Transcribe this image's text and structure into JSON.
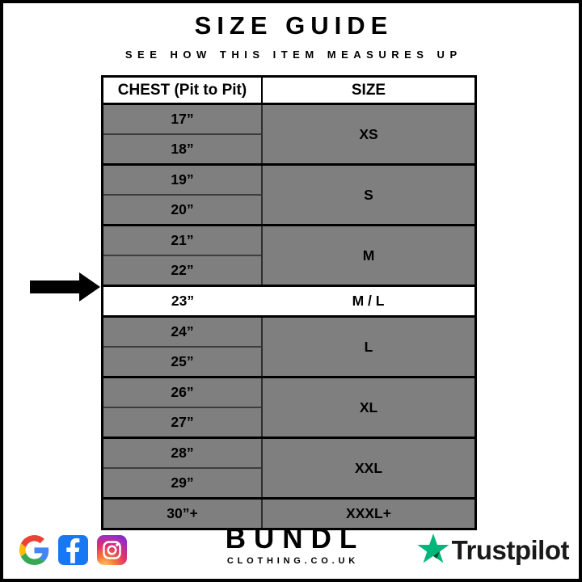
{
  "header": {
    "title": "SIZE GUIDE",
    "subtitle": "SEE HOW THIS ITEM MEASURES UP"
  },
  "chart_data": {
    "type": "table",
    "title": "SIZE GUIDE",
    "columns": [
      "CHEST (Pit to Pit)",
      "SIZE"
    ],
    "groups": [
      {
        "chest": [
          "17”",
          "18”"
        ],
        "size": "XS",
        "highlighted": false
      },
      {
        "chest": [
          "19”",
          "20”"
        ],
        "size": "S",
        "highlighted": false
      },
      {
        "chest": [
          "21”",
          "22”"
        ],
        "size": "M",
        "highlighted": false
      },
      {
        "chest": [
          "23”"
        ],
        "size": "M / L",
        "highlighted": true
      },
      {
        "chest": [
          "24”",
          "25”"
        ],
        "size": "L",
        "highlighted": false
      },
      {
        "chest": [
          "26”",
          "27”"
        ],
        "size": "XL",
        "highlighted": false
      },
      {
        "chest": [
          "28”",
          "29”"
        ],
        "size": "XXL",
        "highlighted": false
      },
      {
        "chest": [
          "30”+"
        ],
        "size": "XXXL+",
        "highlighted": false
      }
    ],
    "highlighted_row": {
      "chest": "23”",
      "size": "M / L"
    }
  },
  "footer": {
    "brand": {
      "name": "BUNDL",
      "domain": "CLOTHING.CO.UK"
    },
    "social_icons": [
      "google-icon",
      "facebook-icon",
      "instagram-icon"
    ],
    "trustpilot": {
      "label": "Trustpilot"
    }
  },
  "colors": {
    "row_gray": "#7f7f7f",
    "highlight_white": "#ffffff",
    "border_black": "#000000",
    "trustpilot_green": "#00B67A",
    "trustpilot_dark_green": "#005128",
    "facebook_blue": "#1877F2",
    "google_red": "#EA4335",
    "google_blue": "#4285F4",
    "google_yellow": "#FBBC05",
    "google_green": "#34A853"
  }
}
